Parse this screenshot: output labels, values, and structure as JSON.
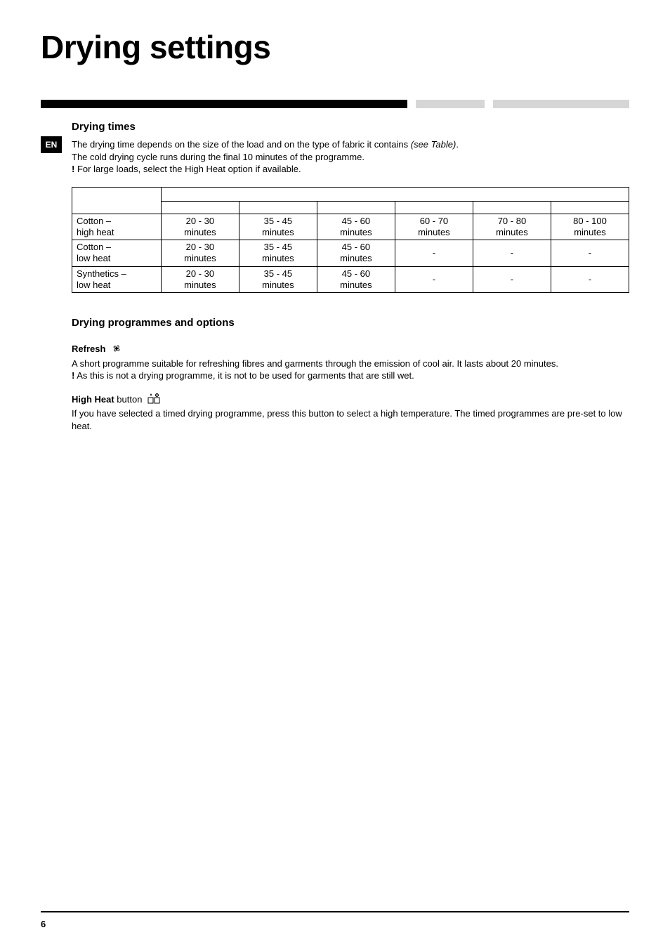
{
  "title": "Drying settings",
  "language_tab": "EN",
  "drying_times": {
    "heading": "Drying  times",
    "para1_a": "The drying time depends on the size of the load and on the type of fabric it contains ",
    "para1_italic": "(see Table)",
    "para1_b": ".",
    "para2": "The cold drying cycle runs during the final 10 minutes of the programme.",
    "bang": "!",
    "para3": " For large loads, select the High Heat option if available.",
    "table": {
      "header_row1": [
        "",
        "",
        "",
        "",
        "",
        "",
        ""
      ],
      "header_row2": [
        "",
        "",
        "",
        "",
        "",
        "",
        ""
      ],
      "rows": [
        {
          "label_l1": "Cotton –",
          "label_l2": "high heat",
          "cells": [
            [
              "20 - 30",
              "minutes"
            ],
            [
              "35 - 45",
              "minutes"
            ],
            [
              "45 - 60",
              "minutes"
            ],
            [
              "60 - 70",
              "minutes"
            ],
            [
              "70 - 80",
              "minutes"
            ],
            [
              "80 - 100",
              "minutes"
            ]
          ]
        },
        {
          "label_l1": "Cotton –",
          "label_l2": "low heat",
          "cells": [
            [
              "20 - 30",
              "minutes"
            ],
            [
              "35 - 45",
              "minutes"
            ],
            [
              "45 - 60",
              "minutes"
            ],
            [
              "-",
              ""
            ],
            [
              "-",
              ""
            ],
            [
              "-",
              ""
            ]
          ]
        },
        {
          "label_l1": "Synthetics –",
          "label_l2": "low heat",
          "cells": [
            [
              "20 - 30",
              "minutes"
            ],
            [
              "35 - 45",
              "minutes"
            ],
            [
              "45 - 60",
              "minutes"
            ],
            [
              "-",
              ""
            ],
            [
              "-",
              ""
            ],
            [
              "-",
              ""
            ]
          ]
        }
      ],
      "col_widths_pct": [
        16,
        14,
        14,
        14,
        14,
        14,
        14
      ]
    }
  },
  "programmes": {
    "heading": "Drying programmes and options",
    "refresh_label": "Refresh",
    "refresh_text_a": "A short programme suitable for refreshing fibres and garments through the emission of cool air. It lasts about ",
    "refresh_20": "20",
    "refresh_text_b": " minutes.",
    "refresh_bang": "!",
    "refresh_note": " As this is not a drying programme, it is not to be used for garments that are still wet.",
    "highheat_label": "High Heat",
    "highheat_button_word": " button",
    "highheat_text": "If you have selected a timed drying programme, press this button to select a high temperature. The timed programmes are pre-set to low heat."
  },
  "page_number": "6",
  "colors": {
    "black": "#000000",
    "gray": "#d6d6d6",
    "bg": "#ffffff"
  }
}
